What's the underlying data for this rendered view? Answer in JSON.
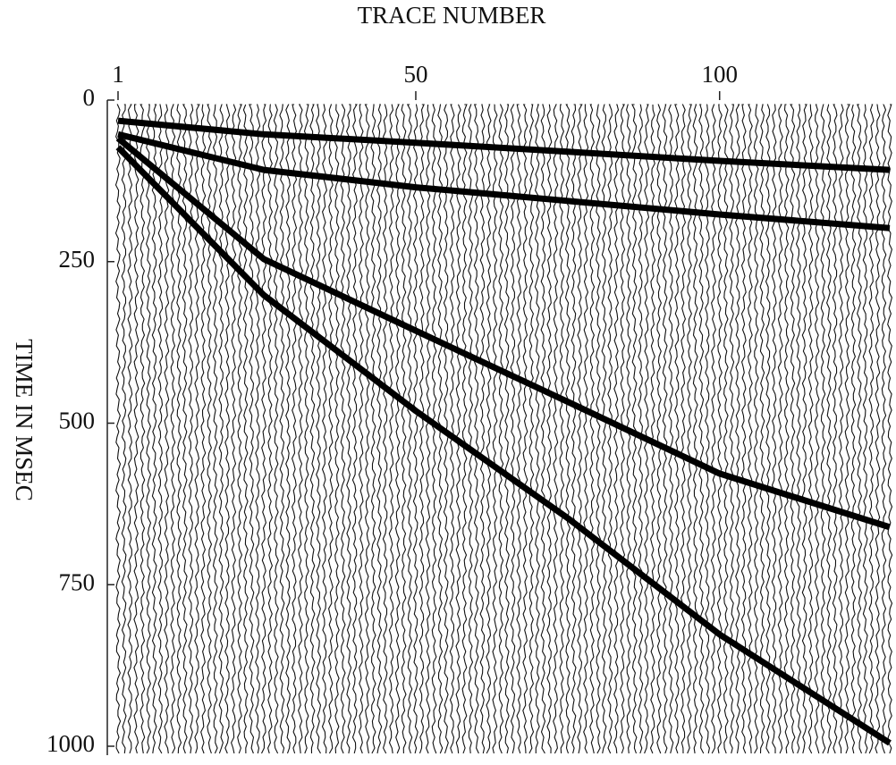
{
  "chart_data": {
    "type": "line",
    "title": "TRACE NUMBER",
    "y_label": "TIME IN MSEC",
    "x": [
      1,
      25,
      50,
      75,
      100,
      128
    ],
    "series": [
      {
        "color": "#000000",
        "values": [
          32,
          53,
          66,
          80,
          94,
          108
        ]
      },
      {
        "color": "#000000",
        "values": [
          53,
          108,
          135,
          156,
          177,
          198
        ]
      },
      {
        "color": "#000000",
        "values": [
          59,
          246,
          357,
          467,
          578,
          661
        ]
      },
      {
        "color": "#000000",
        "values": [
          73,
          302,
          481,
          647,
          827,
          995
        ]
      }
    ],
    "xlim": [
      1,
      128
    ],
    "xticks": [
      1,
      50,
      100
    ],
    "ylim": [
      0,
      1000
    ],
    "yticks": [
      0,
      250,
      500,
      750,
      1000
    ]
  }
}
